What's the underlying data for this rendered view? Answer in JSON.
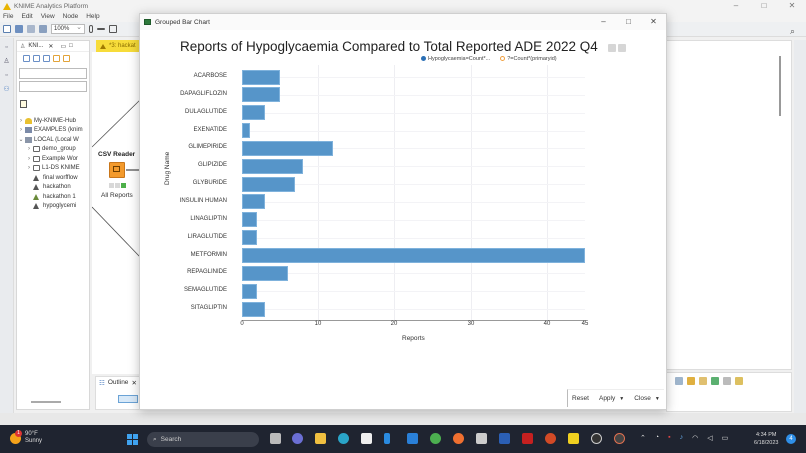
{
  "app": {
    "title": "KNIME Analytics Platform",
    "menu": [
      "File",
      "Edit",
      "View",
      "Node",
      "Help"
    ],
    "zoom_level": "100%",
    "window_controls": [
      "–",
      "□",
      "✕"
    ]
  },
  "explorer": {
    "tab_label": "KNI...",
    "tree": [
      {
        "label": "My-KNIME-Hub",
        "type": "hub",
        "expanded": false,
        "depth": 0
      },
      {
        "label": "EXAMPLES (knim",
        "type": "server",
        "expanded": false,
        "depth": 0
      },
      {
        "label": "LOCAL (Local W",
        "type": "local",
        "expanded": true,
        "depth": 0
      },
      {
        "label": "demo_group",
        "type": "folder",
        "expanded": false,
        "depth": 1
      },
      {
        "label": "Example Wor",
        "type": "folder",
        "expanded": false,
        "depth": 1
      },
      {
        "label": "L1-DS KNIME",
        "type": "folder",
        "expanded": false,
        "depth": 1
      },
      {
        "label": "final worfflow",
        "type": "workflow",
        "depth": 1
      },
      {
        "label": "hackathon",
        "type": "workflow",
        "depth": 1
      },
      {
        "label": "hackathon 1",
        "type": "workflow",
        "depth": 1
      },
      {
        "label": "hypoglycemi",
        "type": "workflow",
        "depth": 1
      }
    ]
  },
  "editor": {
    "tab_label": "*3: hackat",
    "node_title": "CSV Reader",
    "node_name": "All Reports"
  },
  "outline": {
    "tab_label": "Outline"
  },
  "dialog": {
    "title": "Grouped Bar Chart",
    "controls": [
      "–",
      "□",
      "✕"
    ],
    "footer": {
      "reset": "Reset",
      "apply": "Apply",
      "close": "Close",
      "dropdown_icon": "▼"
    }
  },
  "chart_data": {
    "type": "bar",
    "orientation": "horizontal",
    "title": "Reports of Hypoglycaemia Compared to Total Reported ADE 2022 Q4",
    "xlabel": "Reports",
    "ylabel": "Drug Name",
    "xlim": [
      0,
      45
    ],
    "x_ticks": [
      0,
      10,
      20,
      30,
      40,
      45
    ],
    "grid": true,
    "legend_position": "top-right",
    "legend": [
      {
        "label": "Hypoglycaemia=Count*...",
        "color": "#2a6fb5",
        "style": "filled"
      },
      {
        "label": "?=Count*(primaryid)",
        "color": "#f0a040",
        "style": "hollow"
      }
    ],
    "categories": [
      "ACARBOSE",
      "DAPAGLIFLOZIN",
      "DULAGLUTIDE",
      "EXENATIDE",
      "GLIMEPIRIDE",
      "GLIPIZIDE",
      "GLYBURIDE",
      "INSULIN HUMAN",
      "LINAGLIPTIN",
      "LIRAGLUTIDE",
      "METFORMIN",
      "REPAGLINIDE",
      "SEMAGLUTIDE",
      "SITAGLIPTIN"
    ],
    "series": [
      {
        "name": "Hypoglycaemia=Count*...",
        "color": "#5695c9",
        "values": [
          5,
          5,
          3,
          1,
          12,
          8,
          7,
          3,
          2,
          2,
          45,
          6,
          2,
          3
        ]
      }
    ]
  },
  "taskbar": {
    "weather": {
      "temp": "90°F",
      "condition": "Sunny",
      "badge": "1"
    },
    "search_label": "Search",
    "time": "4:34 PM",
    "date": "6/18/2023",
    "notification_count": "4"
  }
}
